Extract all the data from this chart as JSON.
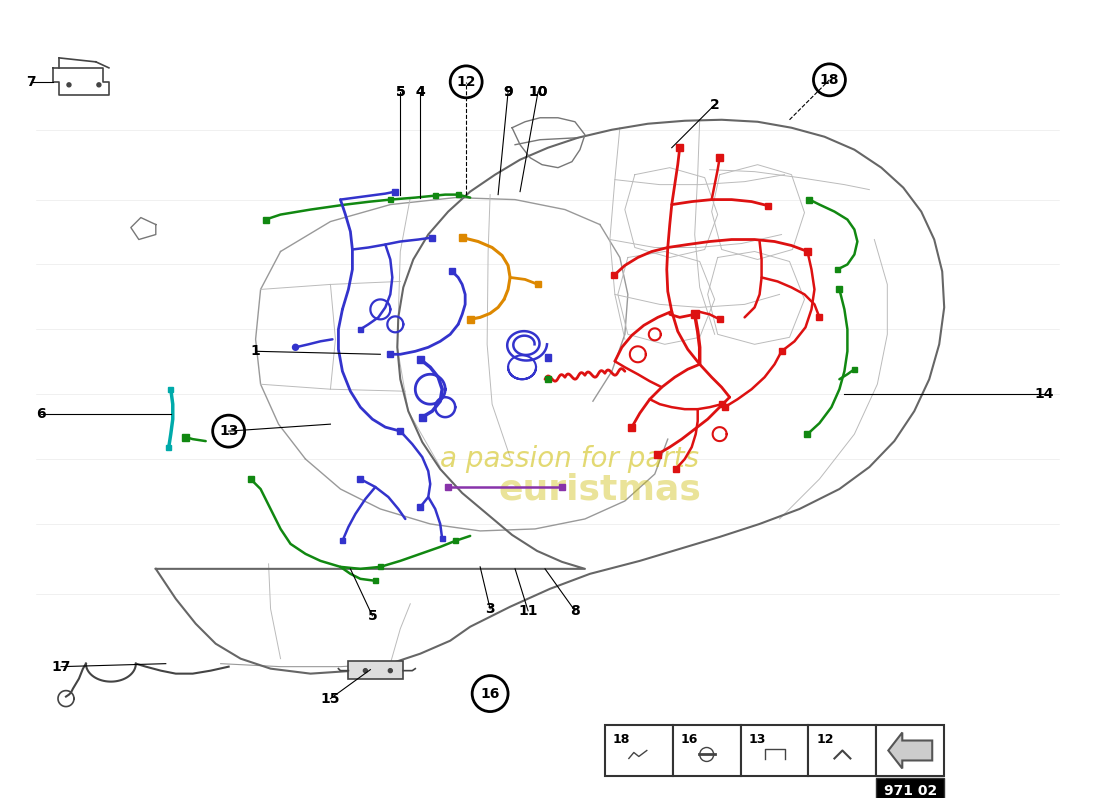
{
  "page_code": "971 02",
  "bg_color": "#ffffff",
  "car_color": "#aaaaaa",
  "wiring": {
    "red": "#dd1111",
    "blue": "#3333cc",
    "green": "#118811",
    "orange": "#dd8800",
    "purple": "#8833aa",
    "teal": "#00aaaa",
    "pink": "#cc3377",
    "red_wavy": "#cc2222",
    "green2": "#228822",
    "yellow_green": "#99bb00"
  },
  "watermark1": "a passion for parts",
  "watermark2": "euristmas",
  "watermark_color": "#ccbb00",
  "callout_line_color": "#000000",
  "legend_nums": [
    18,
    16,
    13,
    12
  ]
}
